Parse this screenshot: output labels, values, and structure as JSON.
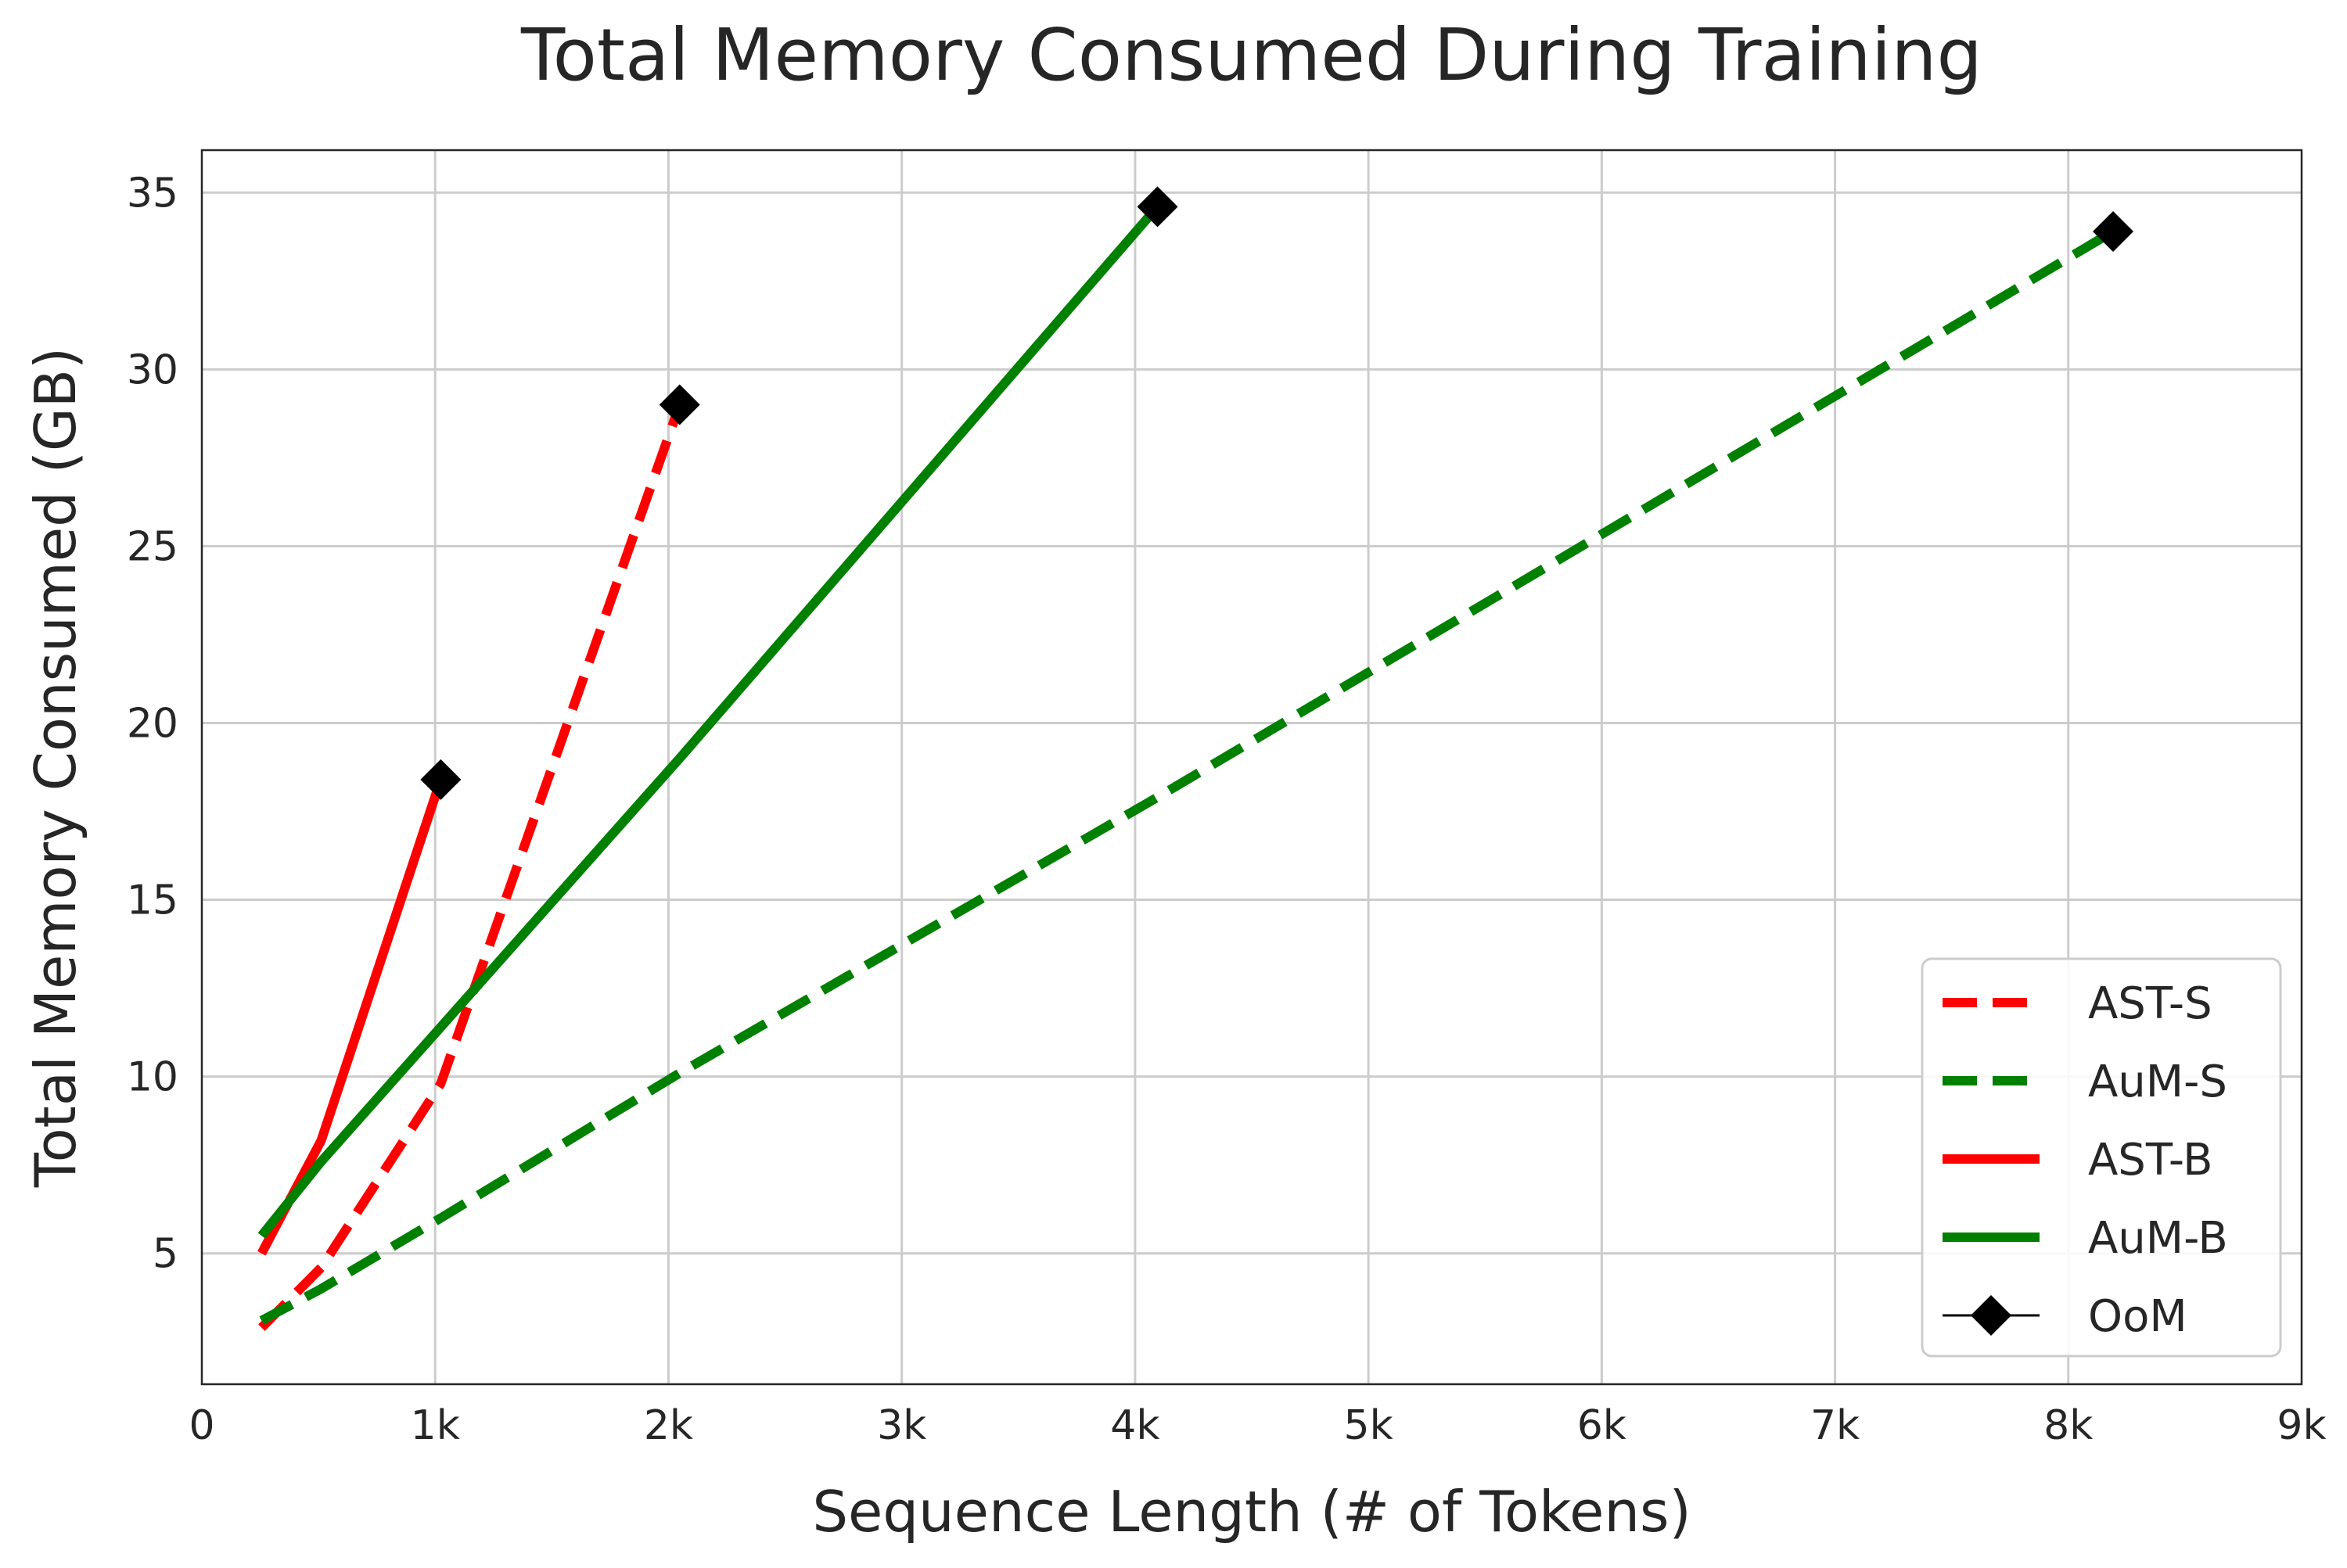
{
  "chart_data": {
    "type": "line",
    "title": "Total Memory Consumed During Training",
    "xlabel": "Sequence Length (# of Tokens)",
    "ylabel": "Total Memory Consumed (GB)",
    "xlim": [
      0,
      9000
    ],
    "ylim": [
      1.3,
      36.2
    ],
    "xticks": [
      0,
      1000,
      2000,
      3000,
      4000,
      5000,
      6000,
      7000,
      8000,
      9000
    ],
    "xtick_labels": [
      "0",
      "1k",
      "2k",
      "3k",
      "4k",
      "5k",
      "6k",
      "7k",
      "8k",
      "9k"
    ],
    "yticks": [
      5,
      10,
      15,
      20,
      25,
      30,
      35
    ],
    "ytick_labels": [
      "5",
      "10",
      "15",
      "20",
      "25",
      "30",
      "35"
    ],
    "grid": true,
    "legend_position": "bottom-right",
    "series": [
      {
        "name": "AST-S",
        "color": "#ff0000",
        "style": "dashed",
        "x": [
          256,
          512,
          1024,
          2048
        ],
        "y": [
          2.9,
          4.6,
          9.8,
          29.0
        ]
      },
      {
        "name": "AuM-S",
        "color": "#008000",
        "style": "dashed",
        "x": [
          256,
          512,
          1024,
          2048,
          4096,
          8192
        ],
        "y": [
          3.1,
          4.0,
          6.0,
          10.1,
          17.9,
          33.9
        ]
      },
      {
        "name": "AST-B",
        "color": "#ff0000",
        "style": "solid",
        "x": [
          256,
          512,
          1024
        ],
        "y": [
          5.0,
          8.2,
          18.4
        ]
      },
      {
        "name": "AuM-B",
        "color": "#008000",
        "style": "solid",
        "x": [
          256,
          512,
          1024,
          2048,
          4096
        ],
        "y": [
          5.5,
          7.6,
          11.4,
          19.0,
          34.6
        ]
      },
      {
        "name": "OoM",
        "color": "#000000",
        "style": "marker-diamond",
        "x": [
          1024,
          2048,
          4096,
          8192
        ],
        "y": [
          18.4,
          29.0,
          34.6,
          33.9
        ]
      }
    ]
  }
}
